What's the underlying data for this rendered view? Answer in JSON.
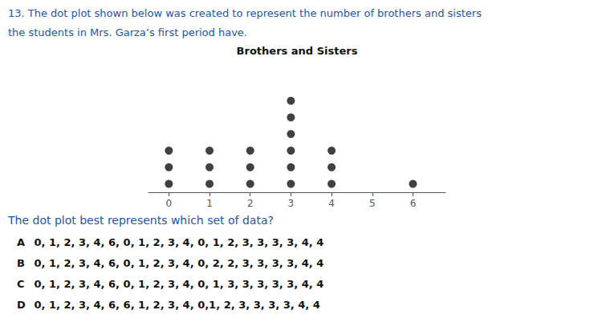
{
  "chart_data": {
    "type": "dot",
    "title": "Brothers and Sisters",
    "x": [
      0,
      1,
      2,
      3,
      4,
      5,
      6
    ],
    "values": [
      3,
      3,
      3,
      6,
      3,
      0,
      1
    ],
    "color": "#111111",
    "xlim": [
      -0.5,
      6.8
    ],
    "xticks": [
      0,
      1,
      2,
      3,
      4,
      5,
      6
    ],
    "tick_labels": "x",
    "grid": false,
    "annotations": [
      {
        "text": "13. The dot plot shown below was created to represent the number of brothers and sisters",
        "color": "#2255aa"
      },
      {
        "text": "the students in Mrs. Garza’s first period have.",
        "color": "#2255aa"
      },
      {
        "text": "The dot plot best represents which set of data?",
        "color": "#2255aa"
      }
    ],
    "options": [
      {
        "label": "A",
        "text": " 0, 1, 2, 3, 4, 6, 0, 1, 2, 3, 4, 0, 1, 2, 3, 3, 3, 3, 4, 4",
        "color": "#111111"
      },
      {
        "label": "B",
        "text": " 0, 1, 2, 3, 4, 6, 0, 1, 2, 3, 4, 0, 2, 2, 3, 3, 3, 3, 4, 4",
        "color": "#111111"
      },
      {
        "label": "C",
        "text": " 0, 1, 2, 3, 4, 6, 0, 1, 2, 3, 4, 0, 1, 3, 3, 3, 3, 3, 4, 4",
        "color": "#111111"
      },
      {
        "label": "D",
        "text": " 0, 1, 2, 3, 4, 6, 6, 1, 2, 3, 4, 0,1, 2, 3, 3, 3, 3, 4, 4",
        "color": "#111111"
      }
    ]
  }
}
